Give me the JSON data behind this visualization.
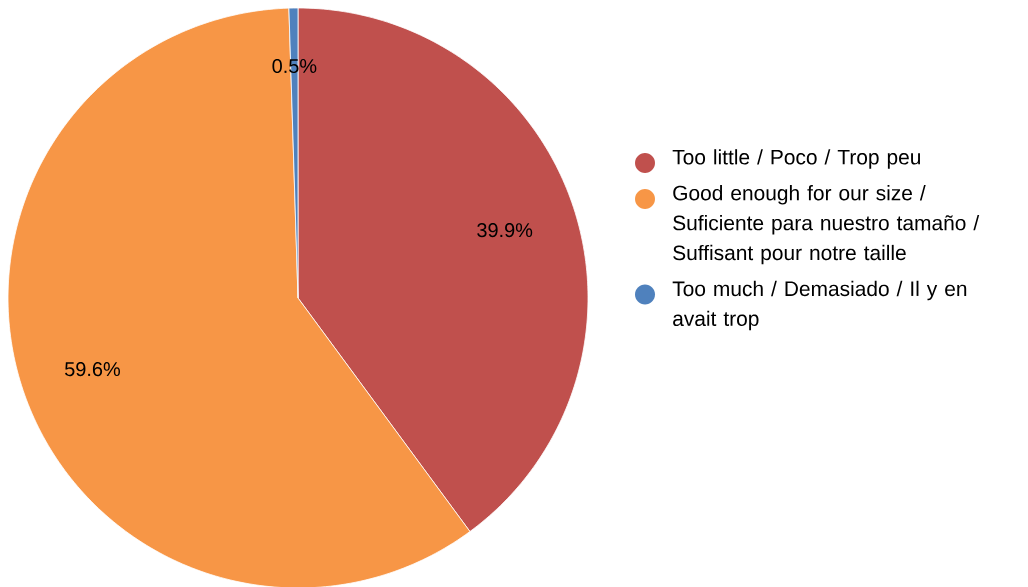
{
  "chart_data": {
    "type": "pie",
    "categories": [
      "Too little / Poco / Trop peu",
      "Good enough for our size / Suficiente para nuestro tamaño / Suffisant pour notre taille",
      "Too much / Demasiado / Il y en avait trop"
    ],
    "values": [
      39.9,
      59.6,
      0.5
    ],
    "colors": [
      "#c0504d",
      "#f79646",
      "#4f81bd"
    ],
    "value_labels": [
      "39.9%",
      "59.6%",
      "0.5%"
    ],
    "legend": "right"
  }
}
